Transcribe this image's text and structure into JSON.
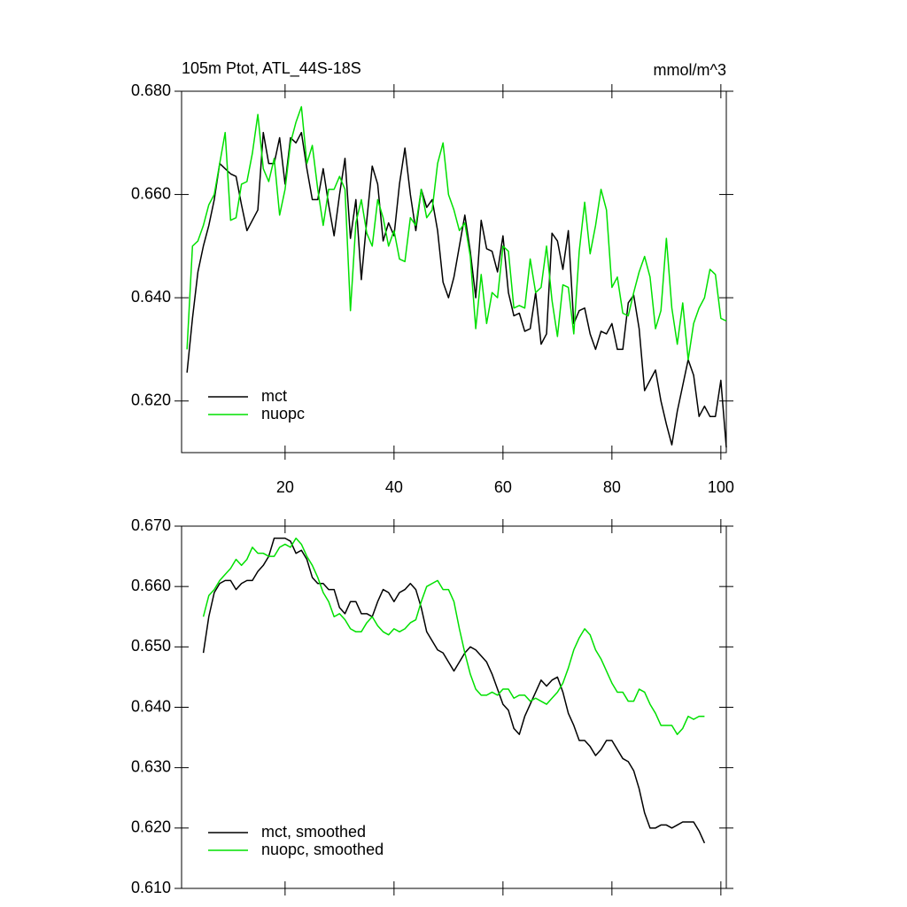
{
  "chart_data": [
    {
      "type": "line",
      "title": "105m Ptot, ATL_44S-18S",
      "subtitle": "mmol/m^3",
      "x": [
        2,
        3,
        4,
        5,
        6,
        7,
        8,
        9,
        10,
        11,
        12,
        13,
        14,
        15,
        16,
        17,
        18,
        19,
        20,
        21,
        22,
        23,
        24,
        25,
        26,
        27,
        28,
        29,
        30,
        31,
        32,
        33,
        34,
        35,
        36,
        37,
        38,
        39,
        40,
        41,
        42,
        43,
        44,
        45,
        46,
        47,
        48,
        49,
        50,
        51,
        52,
        53,
        54,
        55,
        56,
        57,
        58,
        59,
        60,
        61,
        62,
        63,
        64,
        65,
        66,
        67,
        68,
        69,
        70,
        71,
        72,
        73,
        74,
        75,
        76,
        77,
        78,
        79,
        80,
        81,
        82,
        83,
        84,
        85,
        86,
        87,
        88,
        89,
        90,
        91,
        92,
        93,
        94,
        95,
        96,
        97,
        98,
        99,
        100,
        101
      ],
      "series": [
        {
          "name": "mct",
          "color": "#000000",
          "values": [
            0.6255,
            0.636,
            0.645,
            0.65,
            0.654,
            0.659,
            0.666,
            0.665,
            0.664,
            0.6635,
            0.658,
            0.653,
            0.655,
            0.657,
            0.672,
            0.666,
            0.666,
            0.671,
            0.662,
            0.671,
            0.67,
            0.672,
            0.665,
            0.659,
            0.659,
            0.665,
            0.658,
            0.652,
            0.66,
            0.667,
            0.6515,
            0.659,
            0.6435,
            0.655,
            0.6655,
            0.662,
            0.651,
            0.6545,
            0.652,
            0.662,
            0.669,
            0.66,
            0.653,
            0.661,
            0.6575,
            0.659,
            0.653,
            0.643,
            0.64,
            0.644,
            0.65,
            0.656,
            0.649,
            0.64,
            0.655,
            0.6495,
            0.649,
            0.645,
            0.652,
            0.641,
            0.6365,
            0.637,
            0.6335,
            0.634,
            0.641,
            0.631,
            0.633,
            0.6525,
            0.651,
            0.6455,
            0.653,
            0.635,
            0.6375,
            0.638,
            0.633,
            0.63,
            0.6335,
            0.633,
            0.635,
            0.63,
            0.63,
            0.639,
            0.6405,
            0.634,
            0.622,
            0.624,
            0.626,
            0.62,
            0.6155,
            0.6115,
            0.618,
            0.623,
            0.628,
            0.625,
            0.617,
            0.619,
            0.617,
            0.617,
            0.624,
            0.611
          ]
        },
        {
          "name": "nuopc",
          "color": "#00e000",
          "values": [
            0.63,
            0.65,
            0.651,
            0.654,
            0.658,
            0.66,
            0.666,
            0.672,
            0.655,
            0.6555,
            0.662,
            0.6625,
            0.668,
            0.6755,
            0.665,
            0.6625,
            0.667,
            0.656,
            0.661,
            0.67,
            0.674,
            0.677,
            0.666,
            0.6695,
            0.661,
            0.654,
            0.661,
            0.661,
            0.6635,
            0.661,
            0.6375,
            0.6545,
            0.659,
            0.6525,
            0.65,
            0.659,
            0.6555,
            0.65,
            0.653,
            0.6475,
            0.647,
            0.6555,
            0.654,
            0.661,
            0.6555,
            0.657,
            0.666,
            0.67,
            0.66,
            0.657,
            0.653,
            0.6545,
            0.648,
            0.634,
            0.6445,
            0.635,
            0.641,
            0.64,
            0.65,
            0.649,
            0.638,
            0.6385,
            0.638,
            0.6475,
            0.641,
            0.642,
            0.65,
            0.6395,
            0.6325,
            0.6425,
            0.642,
            0.633,
            0.649,
            0.6585,
            0.6485,
            0.654,
            0.661,
            0.657,
            0.642,
            0.644,
            0.637,
            0.6365,
            0.641,
            0.645,
            0.648,
            0.644,
            0.634,
            0.6375,
            0.6515,
            0.638,
            0.631,
            0.639,
            0.628,
            0.635,
            0.638,
            0.64,
            0.6455,
            0.6445,
            0.636,
            0.6355
          ]
        }
      ],
      "xlim": [
        1,
        101
      ],
      "xticks": [
        20,
        40,
        60,
        80,
        100
      ],
      "ylim": [
        0.61,
        0.68
      ],
      "yticks": [
        {
          "value": 0.62,
          "label": "0.620"
        },
        {
          "value": 0.64,
          "label": "0.640"
        },
        {
          "value": 0.66,
          "label": "0.660"
        },
        {
          "value": 0.68,
          "label": "0.680"
        }
      ],
      "legend": "lower left"
    },
    {
      "type": "line",
      "x": [
        5,
        6,
        7,
        8,
        9,
        10,
        11,
        12,
        13,
        14,
        15,
        16,
        17,
        18,
        19,
        20,
        21,
        22,
        23,
        24,
        25,
        26,
        27,
        28,
        29,
        30,
        31,
        32,
        33,
        34,
        35,
        36,
        37,
        38,
        39,
        40,
        41,
        42,
        43,
        44,
        45,
        46,
        47,
        48,
        49,
        50,
        51,
        52,
        53,
        54,
        55,
        56,
        57,
        58,
        59,
        60,
        61,
        62,
        63,
        64,
        65,
        66,
        67,
        68,
        69,
        70,
        71,
        72,
        73,
        74,
        75,
        76,
        77,
        78,
        79,
        80,
        81,
        82,
        83,
        84,
        85,
        86,
        87,
        88,
        89,
        90,
        91,
        92,
        93,
        94,
        95,
        96,
        97
      ],
      "series": [
        {
          "name": "mct, smoothed",
          "color": "#000000",
          "values": [
            0.649,
            0.655,
            0.659,
            0.6605,
            0.661,
            0.661,
            0.6595,
            0.6605,
            0.661,
            0.661,
            0.6625,
            0.6635,
            0.665,
            0.668,
            0.668,
            0.668,
            0.6675,
            0.6655,
            0.666,
            0.6645,
            0.6615,
            0.6605,
            0.6605,
            0.6595,
            0.6595,
            0.6565,
            0.6555,
            0.6575,
            0.6575,
            0.6555,
            0.6555,
            0.655,
            0.6575,
            0.6595,
            0.659,
            0.6575,
            0.659,
            0.6595,
            0.6605,
            0.6595,
            0.6565,
            0.6525,
            0.651,
            0.6495,
            0.649,
            0.6475,
            0.646,
            0.6475,
            0.649,
            0.65,
            0.6495,
            0.6485,
            0.6475,
            0.6455,
            0.643,
            0.6405,
            0.6395,
            0.6365,
            0.6355,
            0.6385,
            0.6405,
            0.6425,
            0.6445,
            0.6435,
            0.6445,
            0.645,
            0.6425,
            0.639,
            0.637,
            0.6345,
            0.6345,
            0.6335,
            0.632,
            0.633,
            0.6345,
            0.6345,
            0.633,
            0.6315,
            0.631,
            0.6295,
            0.6265,
            0.6225,
            0.62,
            0.62,
            0.6205,
            0.6205,
            0.62,
            0.6205,
            0.621,
            0.621,
            0.621,
            0.6195,
            0.6175
          ]
        },
        {
          "name": "nuopc, smoothed",
          "color": "#00e000",
          "values": [
            0.655,
            0.6585,
            0.6595,
            0.661,
            0.662,
            0.663,
            0.6645,
            0.6635,
            0.6645,
            0.6665,
            0.6655,
            0.6655,
            0.665,
            0.665,
            0.6665,
            0.667,
            0.6665,
            0.668,
            0.667,
            0.665,
            0.6635,
            0.6615,
            0.659,
            0.6575,
            0.655,
            0.6555,
            0.6545,
            0.653,
            0.6525,
            0.6525,
            0.654,
            0.655,
            0.6535,
            0.6525,
            0.652,
            0.653,
            0.6525,
            0.653,
            0.654,
            0.6545,
            0.6575,
            0.66,
            0.6605,
            0.661,
            0.6595,
            0.6595,
            0.6575,
            0.653,
            0.649,
            0.6455,
            0.643,
            0.642,
            0.642,
            0.6425,
            0.642,
            0.643,
            0.643,
            0.6415,
            0.642,
            0.642,
            0.641,
            0.6415,
            0.641,
            0.6405,
            0.6415,
            0.6425,
            0.644,
            0.6465,
            0.6495,
            0.6515,
            0.653,
            0.652,
            0.6495,
            0.648,
            0.646,
            0.644,
            0.6425,
            0.6425,
            0.641,
            0.641,
            0.643,
            0.6425,
            0.6405,
            0.639,
            0.637,
            0.637,
            0.637,
            0.6355,
            0.6365,
            0.6385,
            0.638,
            0.6385,
            0.6385
          ]
        }
      ],
      "xlim": [
        1,
        101
      ],
      "ylim": [
        0.61,
        0.67
      ],
      "yticks": [
        {
          "value": 0.61,
          "label": "0.610"
        },
        {
          "value": 0.62,
          "label": "0.620"
        },
        {
          "value": 0.63,
          "label": "0.630"
        },
        {
          "value": 0.64,
          "label": "0.640"
        },
        {
          "value": 0.65,
          "label": "0.650"
        },
        {
          "value": 0.66,
          "label": "0.660"
        },
        {
          "value": 0.67,
          "label": "0.670"
        }
      ],
      "legend": "lower left"
    }
  ]
}
